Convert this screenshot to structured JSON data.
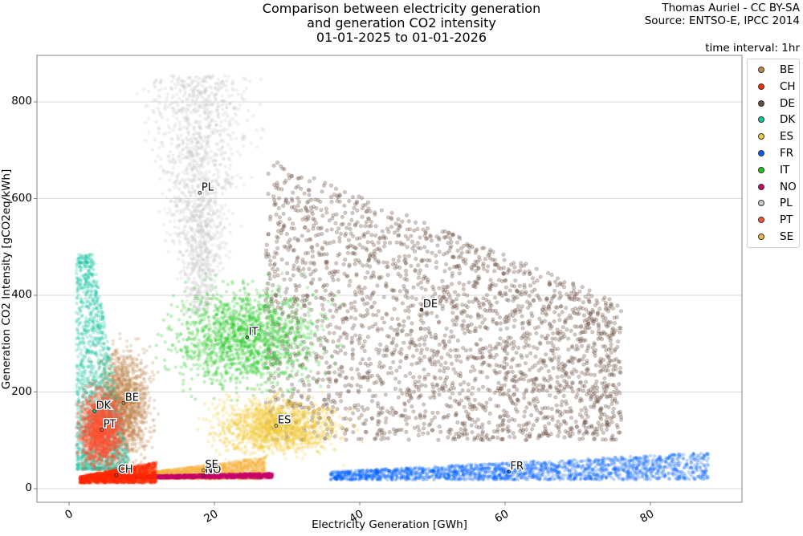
{
  "header": {
    "title_lines": [
      "Comparison between electricity generation",
      "and generation CO2 intensity",
      "01-01-2025 to 01-01-2026"
    ],
    "credit_lines": [
      "Thomas Auriel - CC BY-SA",
      "Source: ENTSO-E, IPCC 2014"
    ],
    "time_interval": "time interval: 1hr"
  },
  "chart_data": {
    "type": "scatter",
    "title": "Comparison between electricity generation and generation CO2 intensity 01-01-2025 to 01-01-2026",
    "xlabel": "Electricity Generation [GWh]",
    "ylabel": "Generation CO2 Intensity [gCO2eq/kWh]",
    "xlim": [
      -4.5,
      92.5
    ],
    "ylim": [
      -28,
      897
    ],
    "x_ticks": [
      0,
      20,
      40,
      60,
      80
    ],
    "y_ticks": [
      0,
      200,
      400,
      600,
      800
    ],
    "grid": "horizontal",
    "legend_position": "outside right",
    "annotation": "time interval: 1hr",
    "series": [
      {
        "name": "BE",
        "color": "#c0874f",
        "centroid": [
          7.5,
          177
        ],
        "x_range": [
          3,
          14
        ],
        "y_range": [
          40,
          370
        ]
      },
      {
        "name": "CH",
        "color": "#ff2800",
        "centroid": [
          6.5,
          28
        ],
        "x_range": [
          1.5,
          12
        ],
        "y_range": [
          12,
          55
        ]
      },
      {
        "name": "DE",
        "color": "#6b4c3f",
        "centroid": [
          48.5,
          370
        ],
        "x_range": [
          27,
          76
        ],
        "y_range": [
          95,
          685
        ]
      },
      {
        "name": "DK",
        "color": "#10c4a0",
        "centroid": [
          3.5,
          160
        ],
        "x_range": [
          0.5,
          8
        ],
        "y_range": [
          40,
          485
        ]
      },
      {
        "name": "ES",
        "color": "#f2cc3a",
        "centroid": [
          28.5,
          130
        ],
        "x_range": [
          17,
          42
        ],
        "y_range": [
          40,
          210
        ]
      },
      {
        "name": "FR",
        "color": "#0060ff",
        "centroid": [
          60.5,
          35
        ],
        "x_range": [
          36,
          88
        ],
        "y_range": [
          18,
          75
        ]
      },
      {
        "name": "IT",
        "color": "#1cc81c",
        "centroid": [
          24.5,
          313
        ],
        "x_range": [
          12,
          42
        ],
        "y_range": [
          140,
          445
        ]
      },
      {
        "name": "NO",
        "color": "#c8006a",
        "centroid": [
          18.5,
          27
        ],
        "x_range": [
          6,
          28
        ],
        "y_range": [
          22,
          32
        ]
      },
      {
        "name": "PL",
        "color": "#c8c8c8",
        "centroid": [
          18,
          612
        ],
        "x_range": [
          9,
          25
        ],
        "y_range": [
          360,
          855
        ]
      },
      {
        "name": "PT",
        "color": "#ff5030",
        "centroid": [
          4.5,
          122
        ],
        "x_range": [
          1,
          10
        ],
        "y_range": [
          30,
          260
        ]
      },
      {
        "name": "SE",
        "color": "#f7b440",
        "centroid": [
          18.5,
          38
        ],
        "x_range": [
          11,
          27
        ],
        "y_range": [
          20,
          65
        ]
      }
    ]
  },
  "legend": {
    "items": [
      {
        "label": "BE",
        "color": "#c0874f"
      },
      {
        "label": "CH",
        "color": "#ff2800"
      },
      {
        "label": "DE",
        "color": "#6b4c3f"
      },
      {
        "label": "DK",
        "color": "#10c4a0"
      },
      {
        "label": "ES",
        "color": "#f2cc3a"
      },
      {
        "label": "FR",
        "color": "#0060ff"
      },
      {
        "label": "IT",
        "color": "#1cc81c"
      },
      {
        "label": "NO",
        "color": "#c8006a"
      },
      {
        "label": "PL",
        "color": "#c8c8c8"
      },
      {
        "label": "PT",
        "color": "#ff5030"
      },
      {
        "label": "SE",
        "color": "#f7b440"
      }
    ]
  }
}
